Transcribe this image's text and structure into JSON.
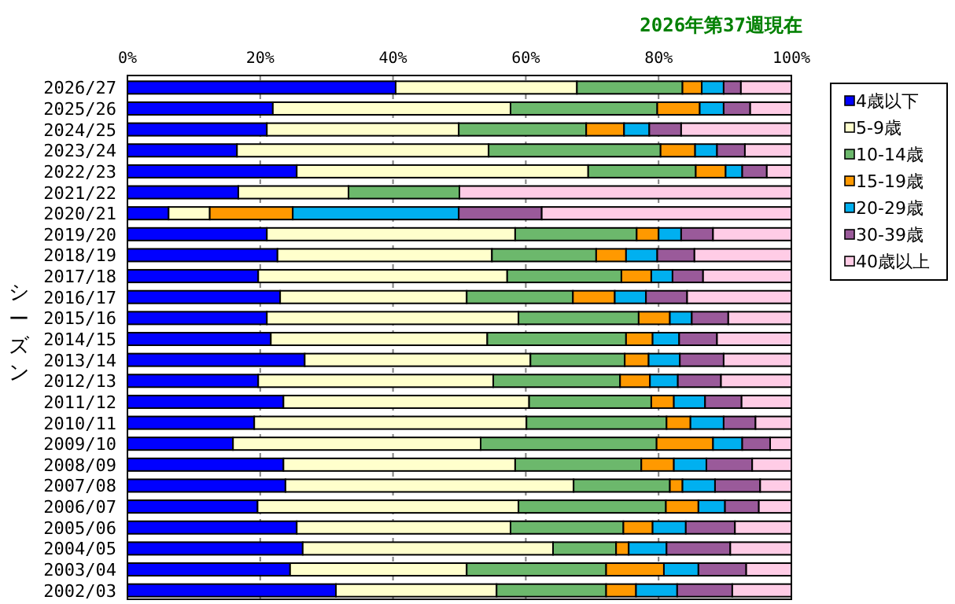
{
  "chart_data": {
    "type": "bar",
    "orientation": "horizontal",
    "stacked": true,
    "title": "2026年第37週現在",
    "ylabel": "シーズン",
    "categories": [
      "2026/27",
      "2025/26",
      "2024/25",
      "2023/24",
      "2022/23",
      "2021/22",
      "2020/21",
      "2019/20",
      "2018/19",
      "2017/18",
      "2016/17",
      "2015/16",
      "2014/15",
      "2013/14",
      "2012/13",
      "2011/12",
      "2010/11",
      "2009/10",
      "2008/09",
      "2007/08",
      "2006/07",
      "2005/06",
      "2004/05",
      "2003/04",
      "2002/03"
    ],
    "series": [
      {
        "name": "4歳以下",
        "color": "#0000ff",
        "values": [
          40.4,
          21.9,
          21.0,
          16.5,
          25.5,
          16.7,
          6.2,
          21.0,
          22.6,
          19.7,
          23.0,
          21.0,
          21.6,
          26.7,
          19.7,
          23.5,
          19.1,
          15.9,
          23.5,
          23.8,
          19.6,
          25.5,
          26.4,
          24.5,
          31.4
        ]
      },
      {
        "name": "5-9歳",
        "color": "#ffffcc",
        "values": [
          27.3,
          35.8,
          28.9,
          37.9,
          43.9,
          16.6,
          6.2,
          37.4,
          32.3,
          37.5,
          28.1,
          37.9,
          32.6,
          34.0,
          35.4,
          37.0,
          41.0,
          37.3,
          34.9,
          43.4,
          39.3,
          32.2,
          37.7,
          26.6,
          24.2
        ]
      },
      {
        "name": "10-14歳",
        "color": "#6cb86c",
        "values": [
          15.9,
          22.1,
          19.2,
          25.9,
          16.2,
          16.7,
          0,
          18.3,
          15.7,
          17.2,
          16.0,
          18.1,
          20.9,
          14.2,
          19.1,
          18.4,
          21.1,
          26.5,
          19.0,
          14.5,
          22.2,
          17.0,
          9.5,
          21.0,
          16.5
        ]
      },
      {
        "name": "15-19歳",
        "color": "#ff9900",
        "values": [
          2.9,
          6.4,
          5.7,
          5.2,
          4.5,
          0,
          12.5,
          3.3,
          4.5,
          4.5,
          6.3,
          4.7,
          4.0,
          3.6,
          4.5,
          3.4,
          3.6,
          8.5,
          4.9,
          1.9,
          4.9,
          4.4,
          1.9,
          8.7,
          4.5
        ]
      },
      {
        "name": "20-29歳",
        "color": "#00b0f0",
        "values": [
          3.3,
          3.6,
          3.8,
          3.3,
          2.5,
          0,
          25.0,
          3.4,
          4.7,
          3.2,
          4.7,
          3.3,
          4.0,
          4.7,
          4.2,
          4.7,
          5.0,
          4.4,
          4.9,
          4.9,
          4.0,
          5.0,
          5.7,
          5.2,
          6.2
        ]
      },
      {
        "name": "30-39歳",
        "color": "#9a5a9a",
        "values": [
          2.6,
          4.0,
          4.8,
          4.2,
          3.7,
          0,
          12.5,
          4.8,
          5.6,
          4.6,
          6.2,
          5.5,
          5.7,
          6.6,
          6.5,
          5.5,
          4.8,
          4.2,
          6.9,
          6.8,
          5.1,
          7.4,
          9.6,
          7.2,
          8.3
        ]
      },
      {
        "name": "40歳以上",
        "color": "#ffcce6",
        "values": [
          7.6,
          6.2,
          16.6,
          7.0,
          3.7,
          50.0,
          37.6,
          11.8,
          14.6,
          13.3,
          15.7,
          9.5,
          11.2,
          10.2,
          10.6,
          7.5,
          5.4,
          3.2,
          5.9,
          4.7,
          4.9,
          8.5,
          9.2,
          6.8,
          8.9
        ]
      }
    ],
    "xlim": [
      0,
      100
    ],
    "xticks": [
      {
        "value": 0,
        "label": "0%"
      },
      {
        "value": 20,
        "label": "20%"
      },
      {
        "value": 40,
        "label": "40%"
      },
      {
        "value": 60,
        "label": "60%"
      },
      {
        "value": 80,
        "label": "80%"
      },
      {
        "value": 100,
        "label": "100%"
      }
    ],
    "grid": "x",
    "legend": "right"
  }
}
